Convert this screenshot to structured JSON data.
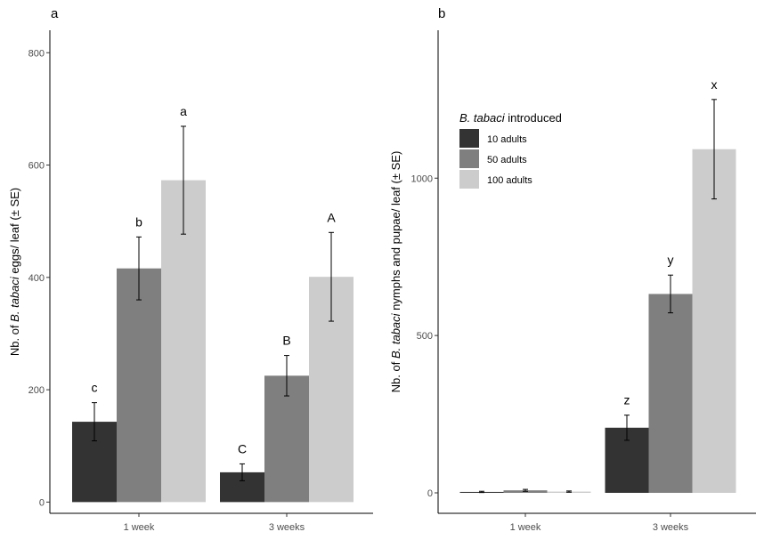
{
  "chart_data": [
    {
      "type": "bar",
      "panel_label": "a",
      "categories": [
        "1 week",
        "3 weeks"
      ],
      "ylabel_prefix": "Nb. of ",
      "ylabel_italic": "B. tabaci",
      "ylabel_suffix": " eggs/ leaf (± SE)",
      "ylim": [
        -20,
        840
      ],
      "yticks": [
        0,
        200,
        400,
        600,
        800
      ],
      "grid": false,
      "series": [
        {
          "name": "10 adults",
          "values": [
            143,
            53
          ],
          "errors": [
            34,
            15
          ],
          "letters": [
            "c",
            "C"
          ],
          "color": "#333333"
        },
        {
          "name": "50 adults",
          "values": [
            416,
            225
          ],
          "errors": [
            56,
            36
          ],
          "letters": [
            "b",
            "B"
          ],
          "color": "#7f7f7f"
        },
        {
          "name": "100 adults",
          "values": [
            573,
            401
          ],
          "errors": [
            96,
            79
          ],
          "letters": [
            "a",
            "A"
          ],
          "color": "#cccccc"
        }
      ]
    },
    {
      "type": "bar",
      "panel_label": "b",
      "categories": [
        "1 week",
        "3 weeks"
      ],
      "ylabel_prefix": "Nb. of ",
      "ylabel_italic": "B. tabaci",
      "ylabel_suffix": " nymphs and pupae/ leaf (± SE)",
      "ylim": [
        -65,
        1470
      ],
      "yticks": [
        0,
        500,
        1000
      ],
      "grid": false,
      "legend": {
        "title_italic": "B. tabaci",
        "title_suffix": " introduced",
        "position": "top-left"
      },
      "series": [
        {
          "name": "10 adults",
          "values": [
            3,
            207
          ],
          "errors": [
            2,
            40
          ],
          "letters": [
            "",
            "z"
          ],
          "color": "#333333"
        },
        {
          "name": "50 adults",
          "values": [
            8,
            632
          ],
          "errors": [
            3,
            60
          ],
          "letters": [
            "",
            "y"
          ],
          "color": "#7f7f7f"
        },
        {
          "name": "100 adults",
          "values": [
            4,
            1092
          ],
          "errors": [
            2,
            158
          ],
          "letters": [
            "",
            "x"
          ],
          "color": "#cccccc"
        }
      ]
    }
  ]
}
